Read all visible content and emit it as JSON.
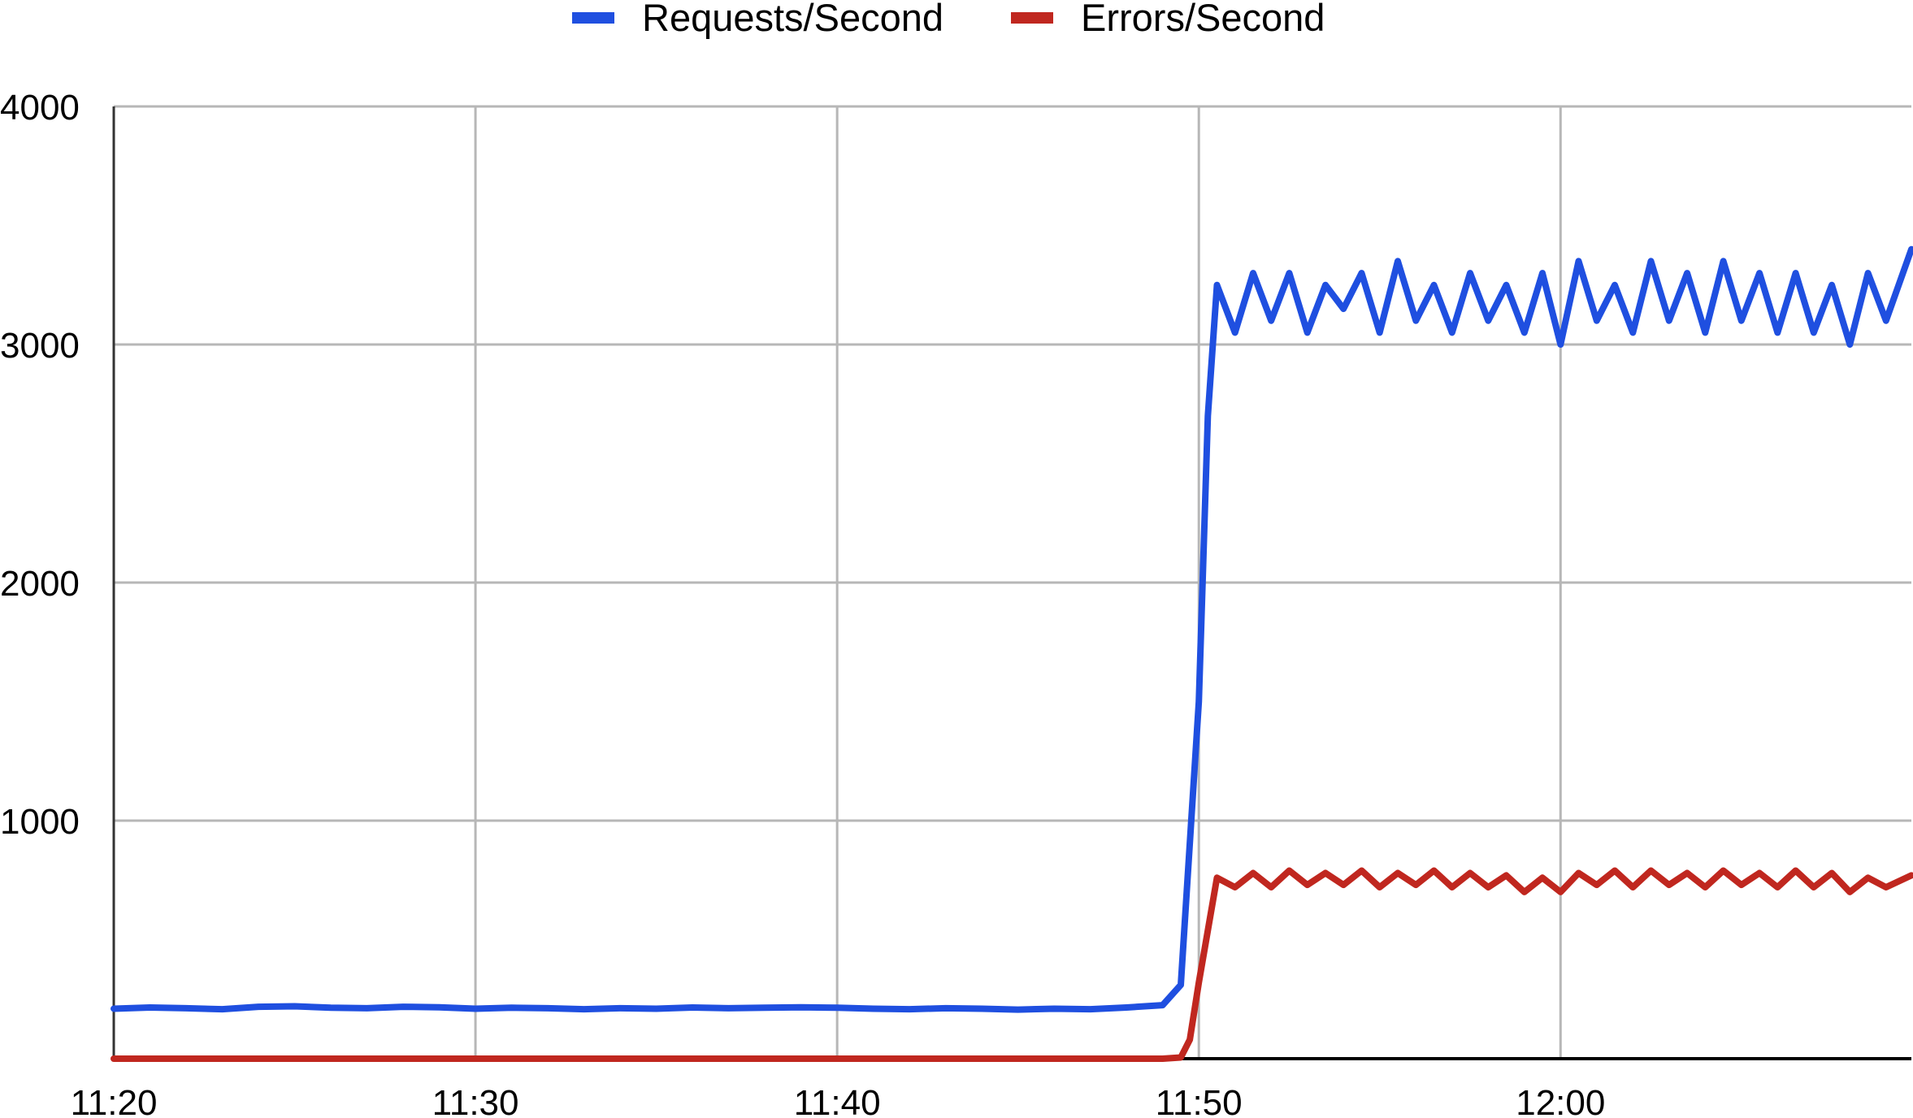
{
  "chart_data": {
    "type": "line",
    "title": "",
    "xlabel": "",
    "ylabel": "",
    "x_ticks": [
      "11:20",
      "11:30",
      "11:40",
      "11:50",
      "12:00"
    ],
    "x_tick_minutes": [
      0,
      10,
      20,
      30,
      40
    ],
    "xlim_minutes": [
      0,
      49.7
    ],
    "y_ticks": [
      "1000",
      "2000",
      "3000",
      "4000"
    ],
    "y_tick_values": [
      1000,
      2000,
      3000,
      4000
    ],
    "ylim": [
      0,
      4000
    ],
    "grid": true,
    "legend_position": "top-center",
    "series": [
      {
        "name": "Requests/Second",
        "color": "#1f4fe0",
        "points": [
          [
            0,
            210
          ],
          [
            1,
            215
          ],
          [
            2,
            212
          ],
          [
            3,
            208
          ],
          [
            4,
            218
          ],
          [
            5,
            220
          ],
          [
            6,
            214
          ],
          [
            7,
            212
          ],
          [
            8,
            218
          ],
          [
            9,
            216
          ],
          [
            10,
            210
          ],
          [
            11,
            214
          ],
          [
            12,
            212
          ],
          [
            13,
            208
          ],
          [
            14,
            212
          ],
          [
            15,
            210
          ],
          [
            16,
            215
          ],
          [
            17,
            212
          ],
          [
            18,
            214
          ],
          [
            19,
            216
          ],
          [
            20,
            214
          ],
          [
            21,
            210
          ],
          [
            22,
            208
          ],
          [
            23,
            212
          ],
          [
            24,
            210
          ],
          [
            25,
            206
          ],
          [
            26,
            210
          ],
          [
            27,
            208
          ],
          [
            28,
            215
          ],
          [
            29,
            225
          ],
          [
            29.5,
            310
          ],
          [
            30,
            1500
          ],
          [
            30.25,
            2700
          ],
          [
            30.5,
            3250
          ],
          [
            31,
            3050
          ],
          [
            31.5,
            3300
          ],
          [
            32,
            3100
          ],
          [
            32.5,
            3300
          ],
          [
            33,
            3050
          ],
          [
            33.5,
            3250
          ],
          [
            34,
            3150
          ],
          [
            34.5,
            3300
          ],
          [
            35,
            3050
          ],
          [
            35.5,
            3350
          ],
          [
            36,
            3100
          ],
          [
            36.5,
            3250
          ],
          [
            37,
            3050
          ],
          [
            37.5,
            3300
          ],
          [
            38,
            3100
          ],
          [
            38.5,
            3250
          ],
          [
            39,
            3050
          ],
          [
            39.5,
            3300
          ],
          [
            40,
            3000
          ],
          [
            40.5,
            3350
          ],
          [
            41,
            3100
          ],
          [
            41.5,
            3250
          ],
          [
            42,
            3050
          ],
          [
            42.5,
            3350
          ],
          [
            43,
            3100
          ],
          [
            43.5,
            3300
          ],
          [
            44,
            3050
          ],
          [
            44.5,
            3350
          ],
          [
            45,
            3100
          ],
          [
            45.5,
            3300
          ],
          [
            46,
            3050
          ],
          [
            46.5,
            3300
          ],
          [
            47,
            3050
          ],
          [
            47.5,
            3250
          ],
          [
            48,
            3000
          ],
          [
            48.5,
            3300
          ],
          [
            49,
            3100
          ],
          [
            49.7,
            3400
          ]
        ]
      },
      {
        "name": "Errors/Second",
        "color": "#c0271f",
        "points": [
          [
            0,
            0
          ],
          [
            10,
            0
          ],
          [
            20,
            0
          ],
          [
            29,
            0
          ],
          [
            29.5,
            5
          ],
          [
            29.75,
            80
          ],
          [
            30,
            320
          ],
          [
            30.5,
            760
          ],
          [
            31,
            720
          ],
          [
            31.5,
            780
          ],
          [
            32,
            720
          ],
          [
            32.5,
            790
          ],
          [
            33,
            730
          ],
          [
            33.5,
            780
          ],
          [
            34,
            730
          ],
          [
            34.5,
            790
          ],
          [
            35,
            720
          ],
          [
            35.5,
            780
          ],
          [
            36,
            730
          ],
          [
            36.5,
            790
          ],
          [
            37,
            720
          ],
          [
            37.5,
            780
          ],
          [
            38,
            720
          ],
          [
            38.5,
            770
          ],
          [
            39,
            700
          ],
          [
            39.5,
            760
          ],
          [
            40,
            700
          ],
          [
            40.5,
            780
          ],
          [
            41,
            730
          ],
          [
            41.5,
            790
          ],
          [
            42,
            720
          ],
          [
            42.5,
            790
          ],
          [
            43,
            730
          ],
          [
            43.5,
            780
          ],
          [
            44,
            720
          ],
          [
            44.5,
            790
          ],
          [
            45,
            730
          ],
          [
            45.5,
            780
          ],
          [
            46,
            720
          ],
          [
            46.5,
            790
          ],
          [
            47,
            720
          ],
          [
            47.5,
            780
          ],
          [
            48,
            700
          ],
          [
            48.5,
            760
          ],
          [
            49,
            720
          ],
          [
            49.7,
            770
          ]
        ]
      }
    ]
  }
}
